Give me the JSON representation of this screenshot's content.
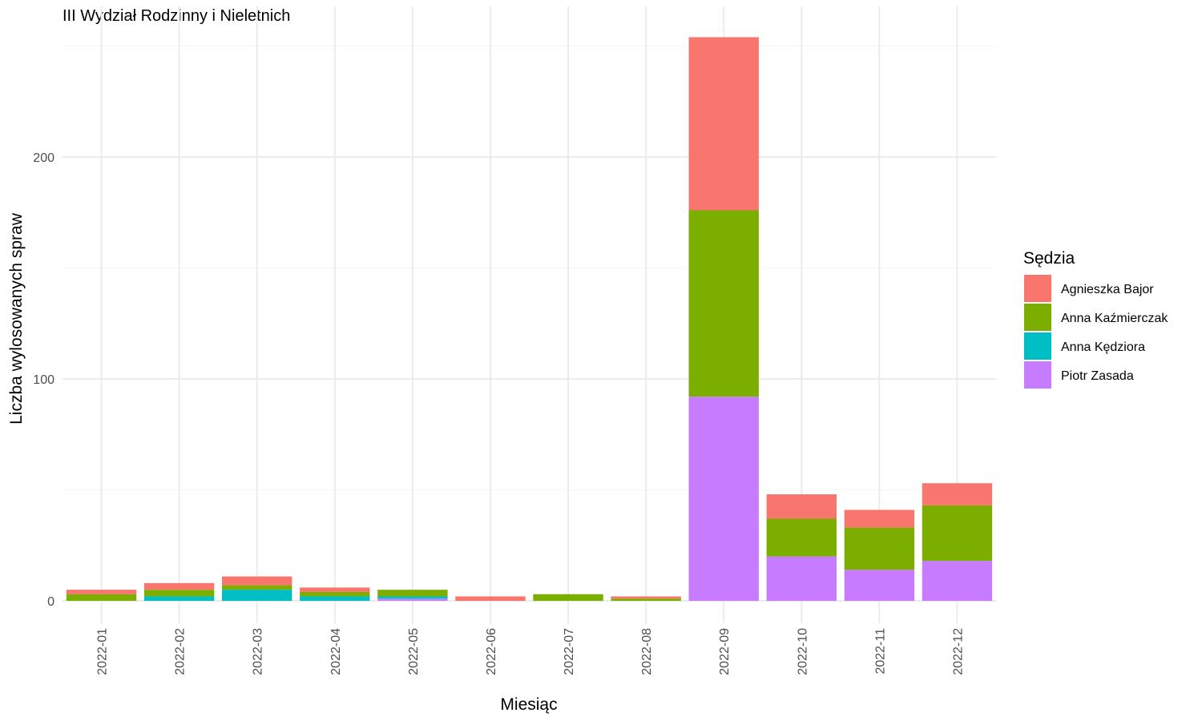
{
  "chart_data": {
    "type": "bar",
    "stacked": true,
    "title": "III Wydział Rodzinny i Nieletnich",
    "xlabel": "Miesiąc",
    "ylabel": "Liczba wylosowanych spraw",
    "ylim": [
      0,
      255
    ],
    "yticks": [
      0,
      100,
      200
    ],
    "grid": true,
    "legend": {
      "title": "Sędzia",
      "position": "right"
    },
    "categories": [
      "2022-01",
      "2022-02",
      "2022-03",
      "2022-04",
      "2022-05",
      "2022-06",
      "2022-07",
      "2022-08",
      "2022-09",
      "2022-10",
      "2022-11",
      "2022-12"
    ],
    "series": [
      {
        "name": "Piotr Zasada",
        "color": "#C77CFF",
        "values": [
          0,
          0,
          0,
          0,
          1,
          0,
          0,
          0,
          92,
          20,
          14,
          18
        ]
      },
      {
        "name": "Anna Kędziora",
        "color": "#00BFC4",
        "values": [
          0,
          2,
          5,
          2,
          1,
          0,
          0,
          0,
          0,
          0,
          0,
          0
        ]
      },
      {
        "name": "Anna Kaźmierczak",
        "color": "#7CAE00",
        "values": [
          3,
          3,
          2,
          2,
          3,
          0,
          3,
          1,
          84,
          17,
          19,
          25
        ]
      },
      {
        "name": "Agnieszka Bajor",
        "color": "#F8766D",
        "values": [
          2,
          3,
          4,
          2,
          0,
          2,
          0,
          1,
          78,
          11,
          8,
          10
        ]
      }
    ],
    "legend_order": [
      "Agnieszka Bajor",
      "Anna Kaźmierczak",
      "Anna Kędziora",
      "Piotr Zasada"
    ]
  }
}
